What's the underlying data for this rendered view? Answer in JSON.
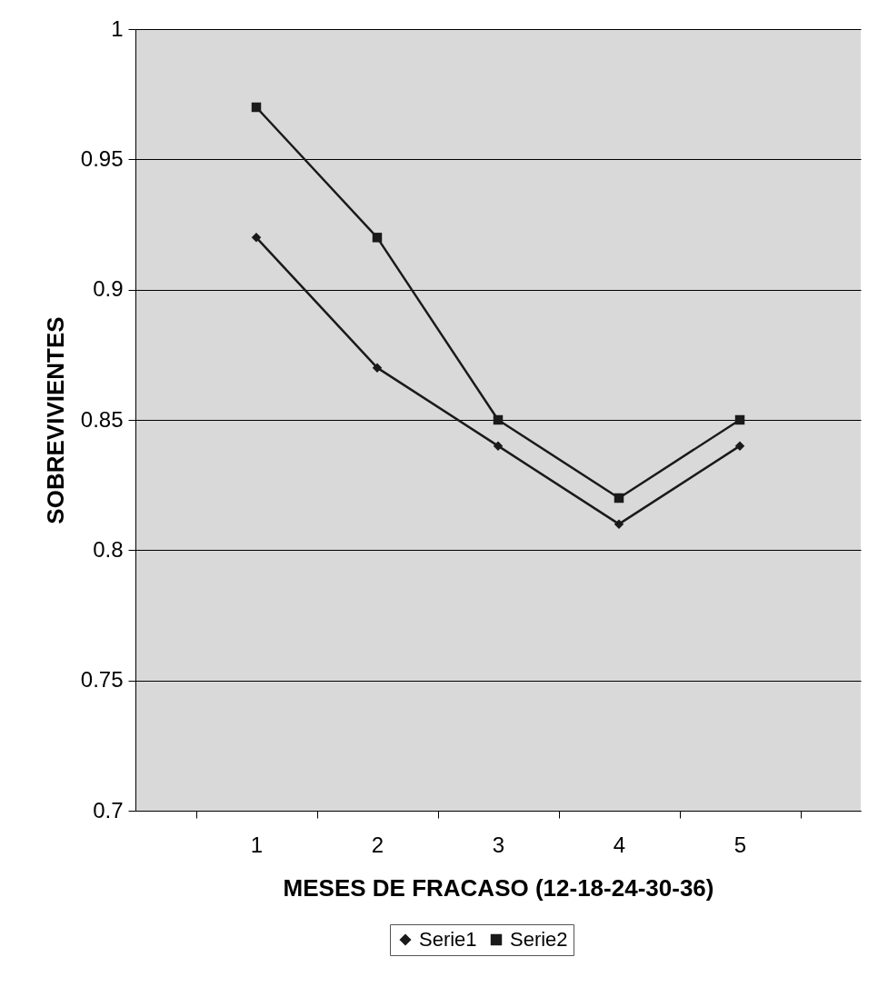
{
  "chart_data": {
    "type": "line",
    "xlabel": "MESES DE FRACASO (12-18-24-30-36)",
    "ylabel": "SOBREVIVIENTES",
    "categories": [
      "1",
      "2",
      "3",
      "4",
      "5"
    ],
    "series": [
      {
        "name": "Serie1",
        "color": "#1a1a1a",
        "marker": "diamond",
        "values": [
          0.92,
          0.87,
          0.84,
          0.81,
          0.84
        ]
      },
      {
        "name": "Serie2",
        "color": "#1a1a1a",
        "marker": "square",
        "values": [
          0.97,
          0.92,
          0.85,
          0.82,
          0.85
        ]
      }
    ],
    "ylim": [
      0.7,
      1
    ],
    "yticks": [
      0.7,
      0.75,
      0.8,
      0.85,
      0.9,
      0.95,
      1
    ],
    "grid": "y",
    "legend": "bottom",
    "line_style": "solid"
  }
}
